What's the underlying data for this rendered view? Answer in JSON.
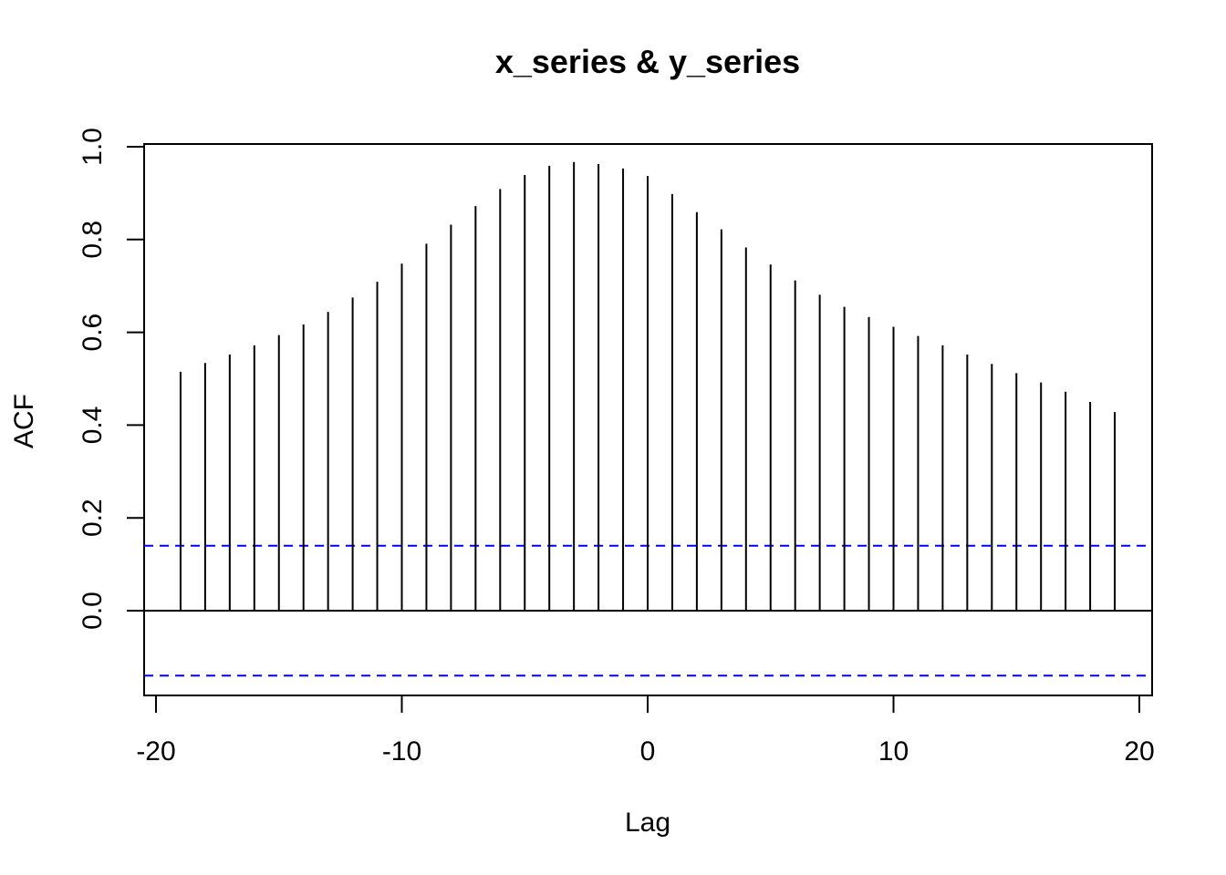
{
  "chart_data": {
    "type": "bar",
    "subtype": "ccf-lollipop",
    "title": "x_series & y_series",
    "xlabel": "Lag",
    "ylabel": "ACF",
    "xlim": [
      -20.5,
      20.5
    ],
    "ylim": [
      -0.18,
      1.0
    ],
    "x_ticks": [
      -20,
      -10,
      0,
      10,
      20
    ],
    "x_tick_labels": [
      "-20",
      "-10",
      "0",
      "10",
      "20"
    ],
    "y_ticks": [
      0.0,
      0.2,
      0.4,
      0.6,
      0.8,
      1.0
    ],
    "y_tick_labels": [
      "0.0",
      "0.2",
      "0.4",
      "0.6",
      "0.8",
      "1.0"
    ],
    "confidence_bound": 0.14,
    "confidence_color": "#0000ff",
    "grid": false,
    "lags": [
      -19,
      -18,
      -17,
      -16,
      -15,
      -14,
      -13,
      -12,
      -11,
      -10,
      -9,
      -8,
      -7,
      -6,
      -5,
      -4,
      -3,
      -2,
      -1,
      0,
      1,
      2,
      3,
      4,
      5,
      6,
      7,
      8,
      9,
      10,
      11,
      12,
      13,
      14,
      15,
      16,
      17,
      18,
      19
    ],
    "values": [
      0.515,
      0.534,
      0.552,
      0.572,
      0.594,
      0.617,
      0.644,
      0.675,
      0.709,
      0.748,
      0.791,
      0.832,
      0.872,
      0.909,
      0.939,
      0.959,
      0.967,
      0.963,
      0.953,
      0.937,
      0.898,
      0.859,
      0.822,
      0.783,
      0.746,
      0.712,
      0.681,
      0.655,
      0.633,
      0.612,
      0.592,
      0.572,
      0.552,
      0.532,
      0.512,
      0.492,
      0.472,
      0.45,
      0.428
    ]
  }
}
